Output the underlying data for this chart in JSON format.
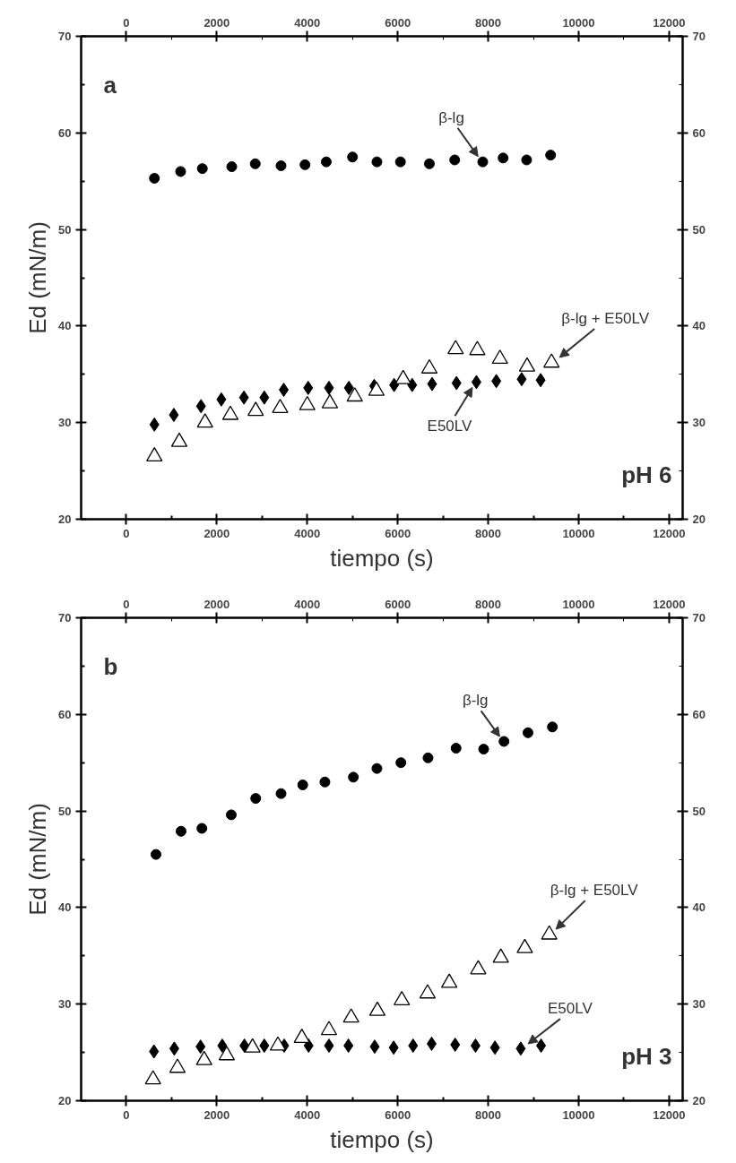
{
  "chart_data": [
    {
      "type": "scatter",
      "xlabel": "tiempo (s)",
      "ylabel": "Ed (mN/m)",
      "xlim": [
        -1000,
        12300
      ],
      "ylim": [
        20,
        70
      ],
      "xticks": [
        0,
        2000,
        4000,
        6000,
        8000,
        10000,
        12000
      ],
      "x2lim": [
        -1000,
        12300
      ],
      "x2ticks": [
        0,
        2000,
        4000,
        6000,
        8000,
        10000,
        12000
      ],
      "yticks": [
        20,
        30,
        40,
        50,
        60,
        70
      ],
      "y2lim": [
        20,
        70
      ],
      "y2ticks": [
        20,
        30,
        40,
        50,
        60,
        70
      ],
      "grid": false,
      "series": [
        {
          "marker": "circle",
          "color": "#000000",
          "x": [
            620,
            1200,
            1680,
            2330,
            2850,
            3420,
            3950,
            4420,
            5000,
            5540,
            6060,
            6700,
            7260,
            7880,
            8330,
            8850,
            9380
          ],
          "values": [
            55.3,
            56,
            56.3,
            56.5,
            56.8,
            56.6,
            56.7,
            57,
            57.5,
            57,
            57,
            56.8,
            57.2,
            57,
            57.4,
            57.2,
            57.7
          ]
        },
        {
          "marker": "diamond",
          "color": "#000000",
          "x": [
            620,
            1050,
            1650,
            2100,
            2600,
            3050,
            3480,
            4020,
            4480,
            4920,
            5480,
            5920,
            6320,
            6760,
            7300,
            7740,
            8180,
            8740,
            9160
          ],
          "values": [
            29.8,
            30.8,
            31.7,
            32.4,
            32.6,
            32.6,
            33.4,
            33.6,
            33.6,
            33.6,
            33.8,
            33.9,
            33.9,
            34,
            34.1,
            34.2,
            34.3,
            34.5,
            34.4
          ]
        },
        {
          "marker": "triangle",
          "color": "#000000",
          "x": [
            620,
            1170,
            1740,
            2300,
            2860,
            3400,
            4000,
            4500,
            5050,
            5530,
            6120,
            6700,
            7280,
            7760,
            8260,
            8860,
            9400
          ],
          "values": [
            26.5,
            28,
            30,
            30.8,
            31.2,
            31.5,
            31.8,
            32,
            32.7,
            33.3,
            34.5,
            35.6,
            37.6,
            37.5,
            36.6,
            35.8,
            36.2
          ]
        }
      ],
      "annotations": [
        "a",
        "pH 6",
        {
          "text": "β-lg",
          "x": 7880,
          "y": 57
        },
        {
          "text": "β-lg + E50LV",
          "x": 9400,
          "y": 36.2
        },
        {
          "text": "E50LV",
          "x": 7740,
          "y": 34.2
        }
      ]
    },
    {
      "type": "scatter",
      "xlabel": "tiempo (s)",
      "ylabel": "Ed (mN/m)",
      "xlim": [
        -1000,
        12300
      ],
      "ylim": [
        20,
        70
      ],
      "xticks": [
        0,
        2000,
        4000,
        6000,
        8000,
        10000,
        12000
      ],
      "x2lim": [
        -1000,
        12300
      ],
      "x2ticks": [
        0,
        2000,
        4000,
        6000,
        8000,
        10000,
        12000
      ],
      "yticks": [
        20,
        30,
        40,
        50,
        60,
        70
      ],
      "y2lim": [
        20,
        70
      ],
      "y2ticks": [
        20,
        30,
        40,
        50,
        60,
        70
      ],
      "grid": false,
      "series": [
        {
          "marker": "circle",
          "color": "#000000",
          "x": [
            655,
            1210,
            1670,
            2320,
            2860,
            3420,
            3900,
            4390,
            5020,
            5540,
            6070,
            6670,
            7290,
            7900,
            8350,
            8880,
            9420
          ],
          "values": [
            45.5,
            47.9,
            48.2,
            49.6,
            51.3,
            51.8,
            52.7,
            53,
            53.5,
            54.4,
            55,
            55.5,
            56.5,
            56.4,
            57.2,
            58.1,
            58.7
          ]
        },
        {
          "marker": "diamond",
          "color": "#000000",
          "x": [
            610,
            1060,
            1640,
            2120,
            2610,
            3050,
            3490,
            4030,
            4480,
            4910,
            5490,
            5910,
            6340,
            6750,
            7270,
            7720,
            8150,
            8720,
            9170
          ],
          "values": [
            25.1,
            25.4,
            25.6,
            25.7,
            25.7,
            25.7,
            25.7,
            25.7,
            25.7,
            25.7,
            25.6,
            25.5,
            25.7,
            25.9,
            25.8,
            25.7,
            25.5,
            25.4,
            25.7
          ]
        },
        {
          "marker": "triangle",
          "color": "#000000",
          "x": [
            590,
            1130,
            1720,
            2220,
            2790,
            3350,
            3880,
            4480,
            4970,
            5550,
            6090,
            6660,
            7140,
            7780,
            8280,
            8810,
            9350
          ],
          "values": [
            22.2,
            23.4,
            24.2,
            24.7,
            25.5,
            25.7,
            26.5,
            27.3,
            28.6,
            29.3,
            30.4,
            31.1,
            32.2,
            33.6,
            34.8,
            35.8,
            37.2
          ]
        }
      ],
      "annotations": [
        "b",
        "pH 3",
        {
          "text": "β-lg",
          "x": 8350,
          "y": 57.2
        },
        {
          "text": "β-lg + E50LV",
          "x": 9350,
          "y": 37.2
        },
        {
          "text": "E50LV",
          "x": 8720,
          "y": 25.4
        }
      ]
    }
  ]
}
